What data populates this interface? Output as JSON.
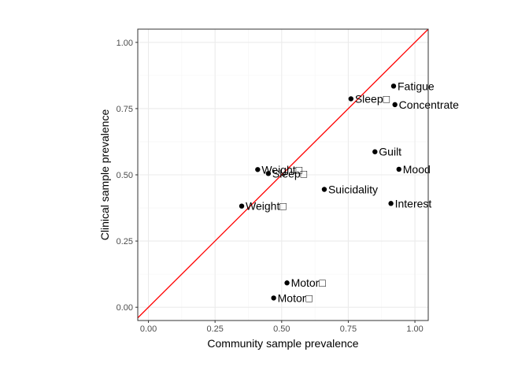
{
  "chart_data": {
    "type": "scatter",
    "xlabel": "Community sample prevalence",
    "ylabel": "Clinical sample prevalence",
    "xlim": [
      -0.04,
      1.05
    ],
    "ylim": [
      -0.05,
      1.05
    ],
    "x_ticks": [
      "0.00",
      "0.25",
      "0.50",
      "0.75",
      "1.00"
    ],
    "y_ticks": [
      "0.00",
      "0.25",
      "0.50",
      "0.75",
      "1.00"
    ],
    "grid": true,
    "reference_line": {
      "slope": 1,
      "intercept": 0,
      "color": "#ff0000"
    },
    "points": [
      {
        "label": "Fatigue",
        "x": 0.92,
        "y": 0.835
      },
      {
        "label": "Sleep□",
        "x": 0.76,
        "y": 0.787
      },
      {
        "label": "Concentrate",
        "x": 0.925,
        "y": 0.765
      },
      {
        "label": "Guilt",
        "x": 0.85,
        "y": 0.587
      },
      {
        "label": "Mood",
        "x": 0.94,
        "y": 0.521
      },
      {
        "label": "Weight□",
        "x": 0.41,
        "y": 0.52
      },
      {
        "label": "Sleep□",
        "x": 0.45,
        "y": 0.505
      },
      {
        "label": "Suicidality",
        "x": 0.66,
        "y": 0.445
      },
      {
        "label": "Interest",
        "x": 0.91,
        "y": 0.392
      },
      {
        "label": "Weight□",
        "x": 0.35,
        "y": 0.382
      },
      {
        "label": "Motor□",
        "x": 0.52,
        "y": 0.092
      },
      {
        "label": "Motor□",
        "x": 0.47,
        "y": 0.035
      }
    ]
  },
  "colors": {
    "point": "#000000",
    "reference_line": "#ff0000",
    "grid_major": "#ebebeb",
    "grid_minor": "#f5f5f5",
    "panel_border": "#333333"
  }
}
